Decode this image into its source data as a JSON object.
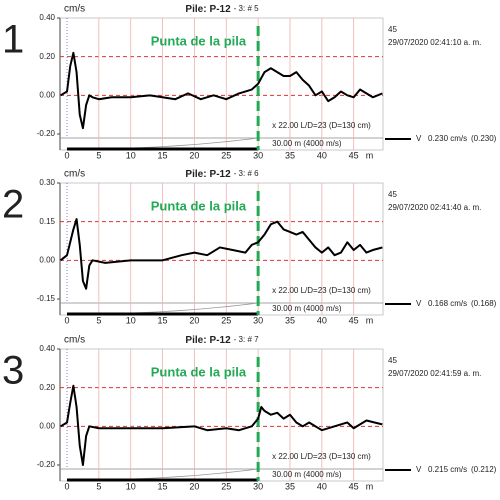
{
  "chart_data": [
    {
      "type": "line",
      "panel_label": "1",
      "pile_prefix": "Pile:",
      "title": "P-12",
      "subtitle": "- 3: # 5",
      "y_unit": "cm/s",
      "x_unit": "m",
      "record": "45",
      "timestamp": "29/07/2020 02:41:10 a. m.",
      "amplification_note": "x 22.00  L/D=23 (D=130 cm)",
      "length_note": "30.00 m (4000 m/s)",
      "annotation": {
        "text": "Punta de la pila",
        "x": 30,
        "color": "#22aa55"
      },
      "xlim": [
        -1.1,
        49.6
      ],
      "xticks": [
        0,
        5,
        10,
        15,
        20,
        25,
        30,
        35,
        40,
        45
      ],
      "ylim": [
        -0.2,
        0.4
      ],
      "yticks": [
        {
          "value": 0.4,
          "label": "0.40"
        },
        {
          "value": 0.2,
          "label": "0.20"
        },
        {
          "value": 0,
          "label": "0.00"
        },
        {
          "value": -0.2,
          "label": "-0.20"
        }
      ],
      "grid": true,
      "x": [
        -1,
        0,
        0.5,
        1,
        1.5,
        2,
        2.5,
        3,
        3.5,
        4,
        5,
        7,
        10,
        13,
        15,
        17,
        19,
        21,
        23,
        25,
        27,
        29,
        30,
        31,
        32,
        33,
        34,
        35,
        36,
        37,
        38,
        39,
        40,
        41,
        42,
        43,
        44,
        45,
        46,
        47,
        48,
        49.5
      ],
      "series": [
        {
          "name": "V",
          "color": "#000000",
          "legend_value": "0.230 cm/s",
          "legend_peak": "(0.230)",
          "values": [
            0,
            0.02,
            0.15,
            0.22,
            0.12,
            -0.1,
            -0.17,
            -0.05,
            0,
            -0.01,
            -0.02,
            -0.01,
            -0.01,
            0,
            -0.01,
            -0.02,
            0.01,
            -0.02,
            0,
            -0.02,
            0.01,
            0.03,
            0.06,
            0.12,
            0.14,
            0.12,
            0.1,
            0.1,
            0.12,
            0.08,
            0.05,
            0,
            0.02,
            -0.03,
            -0.01,
            0.02,
            0,
            -0.01,
            0.03,
            0.01,
            -0.01,
            0.01
          ]
        }
      ]
    },
    {
      "type": "line",
      "panel_label": "2",
      "pile_prefix": "Pile:",
      "title": "P-12",
      "subtitle": "- 3: # 6",
      "y_unit": "cm/s",
      "x_unit": "m",
      "record": "45",
      "timestamp": "29/07/2020 02:41:40 a. m.",
      "amplification_note": "x 22.00  L/D=23 (D=130 cm)",
      "length_note": "30.00 m (4000 m/s)",
      "annotation": {
        "text": "Punta de la pila",
        "x": 30,
        "color": "#22aa55"
      },
      "xlim": [
        -1.1,
        49.6
      ],
      "xticks": [
        0,
        5,
        10,
        15,
        20,
        25,
        30,
        35,
        40,
        45
      ],
      "ylim": [
        -0.15,
        0.3
      ],
      "yticks": [
        {
          "value": 0.3,
          "label": "0.30"
        },
        0.15,
        {
          "value": 0,
          "label": "0.00"
        },
        -0.15
      ],
      "grid": true,
      "x": [
        -1,
        0,
        1,
        1.5,
        2,
        2.5,
        3,
        3.5,
        4,
        6,
        10,
        15,
        18,
        20,
        22,
        24,
        26,
        28,
        29,
        30,
        31,
        32,
        33,
        34,
        35,
        36,
        37,
        38,
        39,
        40,
        41,
        42,
        43,
        44,
        45,
        46,
        47,
        48,
        49.5
      ],
      "series": [
        {
          "name": "V",
          "color": "#000000",
          "legend_value": "0.168 cm/s",
          "legend_peak": "(0.168)",
          "values": [
            0,
            0.02,
            0.12,
            0.16,
            0.06,
            -0.08,
            -0.11,
            -0.02,
            0,
            -0.01,
            0,
            0,
            0.02,
            0.03,
            0.02,
            0.05,
            0.04,
            0.03,
            0.06,
            0.07,
            0.1,
            0.14,
            0.15,
            0.12,
            0.11,
            0.1,
            0.11,
            0.08,
            0.05,
            0.03,
            0.05,
            0.02,
            0.03,
            0.07,
            0.04,
            0.06,
            0.03,
            0.04,
            0.05
          ]
        }
      ]
    },
    {
      "type": "line",
      "panel_label": "3",
      "pile_prefix": "Pile:",
      "title": "P-12",
      "subtitle": "- 3: # 7",
      "y_unit": "cm/s",
      "x_unit": "m",
      "record": "45",
      "timestamp": "29/07/2020 02:41:59 a. m.",
      "amplification_note": "x 22.00  L/D=23 (D=130 cm)",
      "length_note": "30.00 m (4000 m/s)",
      "annotation": {
        "text": "Punta de la pila",
        "x": 30,
        "color": "#22aa55"
      },
      "xlim": [
        -1.1,
        49.6
      ],
      "xticks": [
        0,
        5,
        10,
        15,
        20,
        25,
        30,
        35,
        40,
        45
      ],
      "ylim": [
        -0.2,
        0.4
      ],
      "yticks": [
        {
          "value": 0.4,
          "label": "0.40"
        },
        {
          "value": 0.2,
          "label": "0.20"
        },
        {
          "value": 0,
          "label": "0.00"
        },
        {
          "value": -0.2,
          "label": "-0.20"
        }
      ],
      "grid": true,
      "x": [
        -1,
        0,
        0.5,
        1,
        1.5,
        2,
        2.5,
        3,
        3.5,
        5,
        10,
        15,
        20,
        22,
        25,
        27,
        29,
        30,
        30.5,
        31,
        32,
        33,
        34,
        35,
        36,
        37,
        38,
        40,
        42,
        44,
        45,
        47,
        49.5
      ],
      "series": [
        {
          "name": "V",
          "color": "#000000",
          "legend_value": "0.215 cm/s",
          "legend_peak": "(0.212)",
          "values": [
            0,
            0.02,
            0.12,
            0.21,
            0.1,
            -0.1,
            -0.2,
            -0.05,
            0,
            -0.01,
            -0.01,
            -0.01,
            0,
            -0.02,
            -0.01,
            -0.02,
            0,
            0.04,
            0.1,
            0.08,
            0.06,
            0.07,
            0.04,
            0.06,
            0.02,
            0,
            0.02,
            -0.02,
            0,
            0.02,
            -0.01,
            0.03,
            0.01
          ]
        }
      ]
    }
  ]
}
